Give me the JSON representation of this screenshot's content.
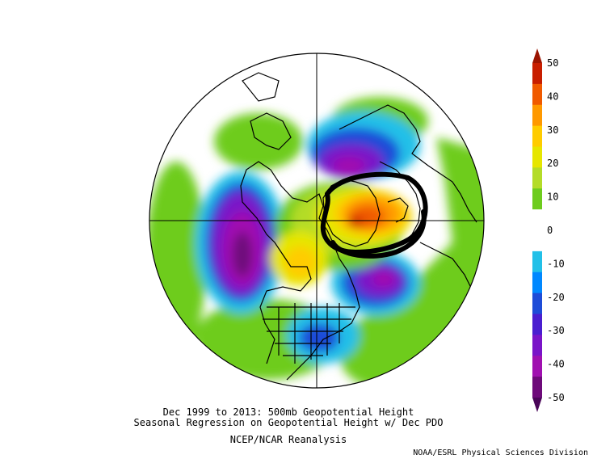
{
  "titles": {
    "line1": "Dec 1999 to 2013: 500mb Geopotential Height",
    "line2": "Seasonal Regression on Geopotential Height  w/ Dec PDO",
    "line3": "NCEP/NCAR Reanalysis"
  },
  "credit": "NOAA/ESRL Physical Sciences Division",
  "colorbar": {
    "labels": [
      "50",
      "40",
      "30",
      "20",
      "10",
      "0",
      "-10",
      "-20",
      "-30",
      "-40",
      "-50"
    ],
    "colors": [
      "#c81e00",
      "#f05a00",
      "#ff9900",
      "#ffcc00",
      "#e6e600",
      "#b4dc28",
      "#6ecc1e",
      "#ffffff",
      "#ffffff",
      "#22c0e8",
      "#0088ff",
      "#1e4cd8",
      "#4a1ed0",
      "#7a14c8",
      "#a010b0",
      "#6e0a7a"
    ]
  },
  "colors": {
    "land_outline": "#000000",
    "annotation": "#000000"
  }
}
